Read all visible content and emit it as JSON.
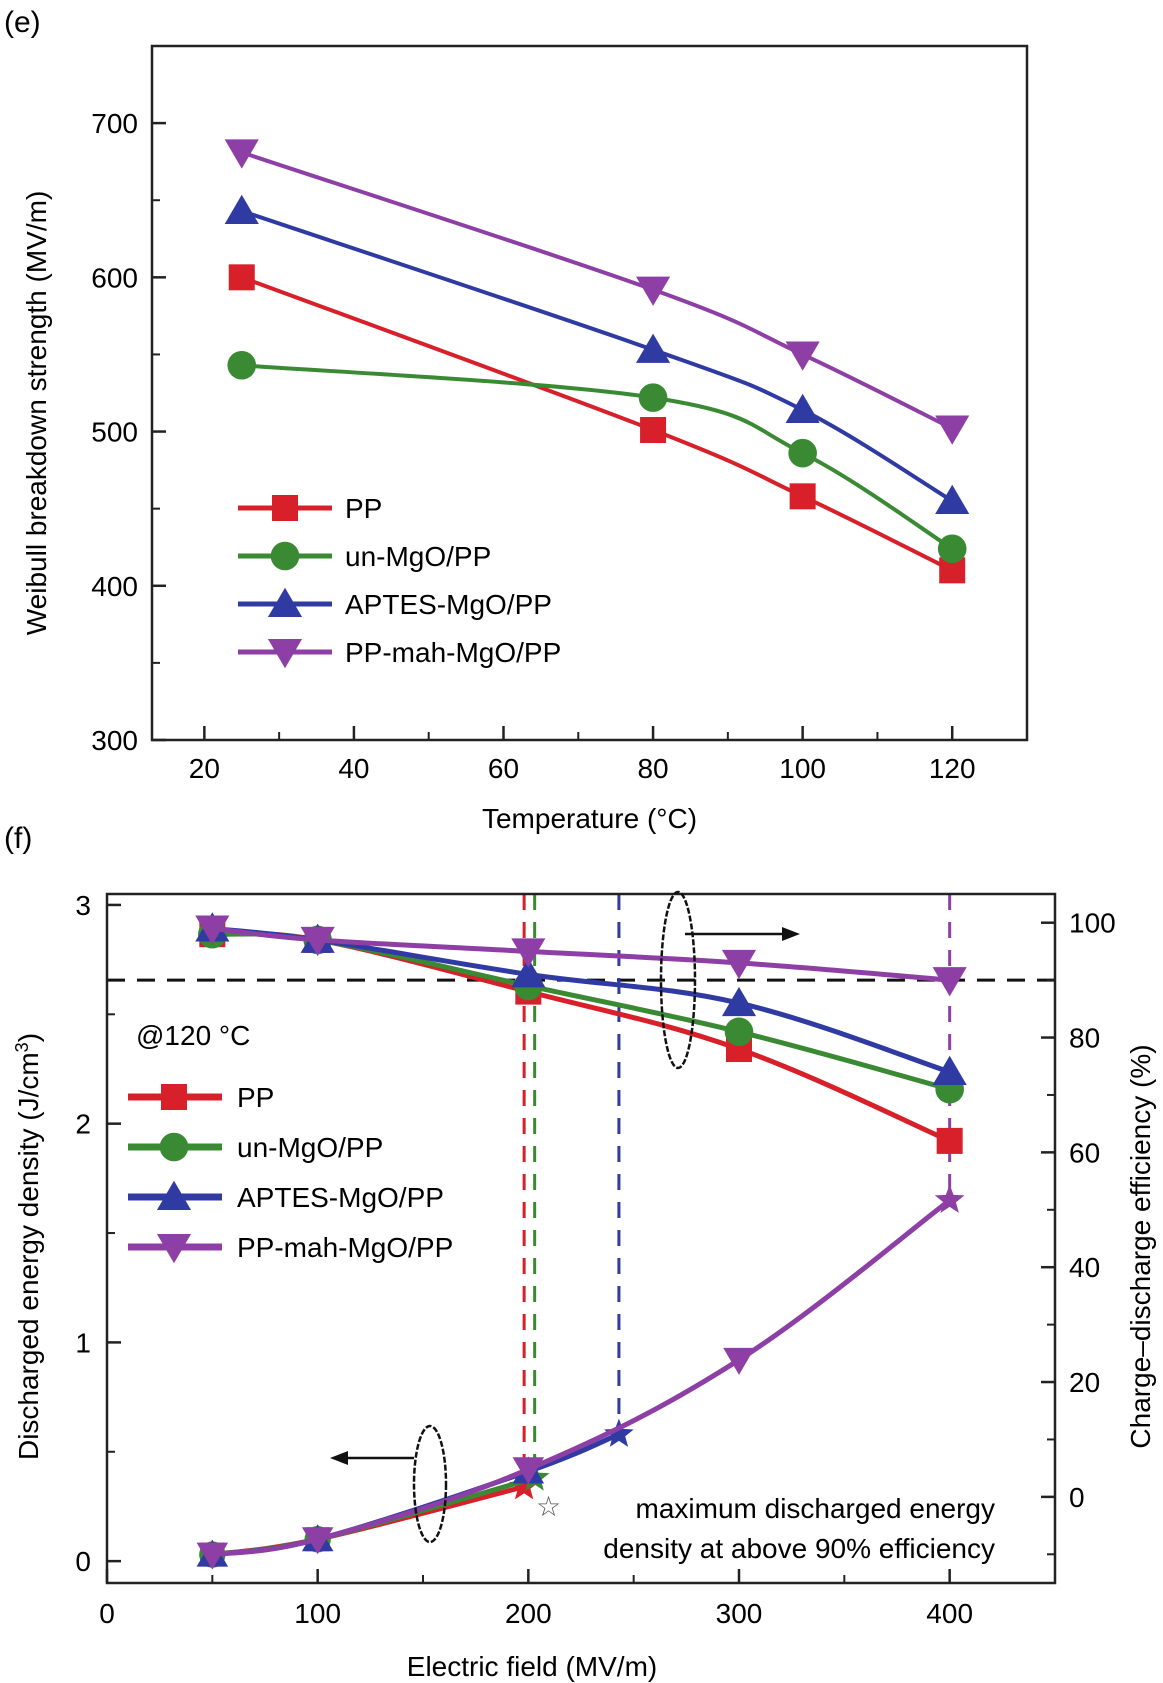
{
  "chart_data": [
    {
      "panel": "(e)",
      "type": "line",
      "title": "",
      "xlabel": "Temperature (°C)",
      "ylabel": "Weibull breakdown strength (MV/m)",
      "xlim": [
        13,
        130
      ],
      "ylim": [
        300,
        750
      ],
      "xticks": [
        20,
        40,
        60,
        80,
        100,
        120
      ],
      "yticks": [
        300,
        400,
        500,
        600,
        700
      ],
      "grid": false,
      "legend_position": "center-left",
      "x": [
        25,
        80,
        100,
        120
      ],
      "series": [
        {
          "name": "PP",
          "color": "#d7202a",
          "marker": "square",
          "values": [
            600,
            501,
            458,
            410
          ]
        },
        {
          "name": "un-MgO/PP",
          "color": "#3a8a34",
          "marker": "circle",
          "values": [
            543,
            522,
            486,
            424
          ]
        },
        {
          "name": "APTES-MgO/PP",
          "color": "#2f3aa3",
          "marker": "triangle-up",
          "values": [
            643,
            553,
            514,
            455
          ]
        },
        {
          "name": "PP-mah-MgO/PP",
          "color": "#8e3fa6",
          "marker": "triangle-down",
          "values": [
            681,
            592,
            550,
            502
          ]
        }
      ]
    },
    {
      "panel": "(f)",
      "type": "line",
      "title": "",
      "annotation_temp": "@120 °C",
      "xlabel": "Electric field (MV/m)",
      "ylabel_left": "Discharged energy density (J/cm³)",
      "ylabel_left_main": "Discharged energy density (J/cm",
      "ylabel_left_sup": "3",
      "ylabel_left_end": ")",
      "ylabel_right": "Charge–discharge efficiency (%)",
      "xlim": [
        0,
        450
      ],
      "ylim_left": [
        -0.1,
        3.05
      ],
      "ylim_right": [
        -15,
        105
      ],
      "xticks": [
        0,
        100,
        200,
        300,
        400
      ],
      "yticks_left": [
        0,
        1,
        2,
        3
      ],
      "yticks_right": [
        0,
        20,
        40,
        60,
        80,
        100
      ],
      "grid": false,
      "legend_position": "center-left",
      "reference_line_efficiency": 90,
      "x": [
        50,
        100,
        200,
        300,
        400
      ],
      "efficiency_series": [
        {
          "name": "PP",
          "color": "#d7202a",
          "marker": "square",
          "x": [
            50,
            100,
            200,
            300,
            400
          ],
          "values": [
            98,
            97,
            88,
            78,
            62
          ]
        },
        {
          "name": "un-MgO/PP",
          "color": "#3a8a34",
          "marker": "circle",
          "x": [
            50,
            100,
            200,
            300,
            400
          ],
          "values": [
            98,
            97,
            89,
            81,
            71
          ]
        },
        {
          "name": "APTES-MgO/PP",
          "color": "#2f3aa3",
          "marker": "triangle-up",
          "x": [
            50,
            100,
            200,
            300,
            400
          ],
          "values": [
            99,
            97,
            91,
            86,
            74
          ]
        },
        {
          "name": "PP-mah-MgO/PP",
          "color": "#8e3fa6",
          "marker": "triangle-down",
          "x": [
            50,
            100,
            200,
            300,
            400
          ],
          "values": [
            99,
            97,
            95,
            93,
            90
          ]
        }
      ],
      "energy_series": [
        {
          "name": "PP",
          "color": "#d7202a",
          "marker": "square",
          "x": [
            50,
            100,
            198
          ],
          "values": [
            0.03,
            0.1,
            0.34
          ]
        },
        {
          "name": "un-MgO/PP",
          "color": "#3a8a34",
          "marker": "circle",
          "x": [
            50,
            100,
            203
          ],
          "values": [
            0.03,
            0.1,
            0.38
          ]
        },
        {
          "name": "APTES-MgO/PP",
          "color": "#2f3aa3",
          "marker": "triangle-up",
          "x": [
            50,
            100,
            200,
            243
          ],
          "values": [
            0.03,
            0.1,
            0.41,
            0.58
          ]
        },
        {
          "name": "PP-mah-MgO/PP",
          "color": "#8e3fa6",
          "marker": "triangle-down",
          "x": [
            50,
            100,
            200,
            300,
            400
          ],
          "values": [
            0.03,
            0.1,
            0.42,
            0.92,
            1.65
          ]
        }
      ],
      "max_energy_markers": [
        {
          "name": "PP",
          "color": "#d7202a",
          "x": 198,
          "value": 0.34
        },
        {
          "name": "un-MgO/PP",
          "color": "#3a8a34",
          "x": 203,
          "value": 0.38
        },
        {
          "name": "APTES-MgO/PP",
          "color": "#2f3aa3",
          "x": 243,
          "value": 0.58
        },
        {
          "name": "PP-mah-MgO/PP",
          "color": "#8e3fa6",
          "x": 400,
          "value": 1.65
        }
      ],
      "annotation_star_line1": "maximum discharged energy",
      "annotation_star_line2": "density at above 90% efficiency",
      "annotation_star_glyph": "☆"
    }
  ]
}
